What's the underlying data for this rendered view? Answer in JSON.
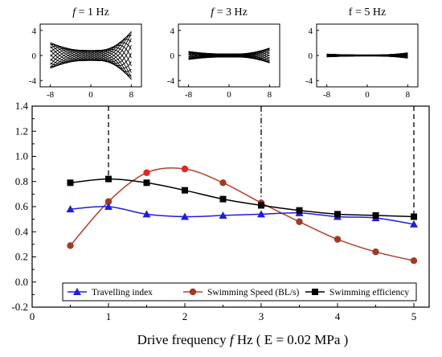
{
  "chart_data": [
    {
      "type": "line",
      "title_parts": [
        "f",
        " = 1 Hz"
      ],
      "title_italic_f": true,
      "xlim": [
        -10,
        10
      ],
      "ylim": [
        -5,
        5
      ],
      "xticks": [
        "-8",
        "0",
        "8"
      ],
      "xtick_values": [
        -8,
        0,
        8
      ],
      "yticks": [
        "4",
        "0",
        "-4"
      ],
      "ytick_values": [
        4,
        0,
        -4
      ],
      "amplitude": 0.9,
      "curves": 18,
      "x_range": [
        -8,
        8
      ]
    },
    {
      "type": "line",
      "title_parts": [
        "f",
        " = 3 Hz"
      ],
      "title_italic_f": true,
      "xlim": [
        -10,
        10
      ],
      "ylim": [
        -5,
        5
      ],
      "xticks": [
        "-8",
        "0",
        "8"
      ],
      "xtick_values": [
        -8,
        0,
        8
      ],
      "yticks": [
        "4",
        "0",
        "-4"
      ],
      "ytick_values": [
        4,
        0,
        -4
      ],
      "amplitude": 0.28,
      "curves": 18,
      "x_range": [
        -8,
        8
      ]
    },
    {
      "type": "line",
      "title_parts": [
        "f",
        " = 5 Hz"
      ],
      "title_italic_f": false,
      "xlim": [
        -10,
        10
      ],
      "ylim": [
        -5,
        5
      ],
      "xticks": [
        "-8",
        "0",
        "8"
      ],
      "xtick_values": [
        -8,
        0,
        8
      ],
      "yticks": [
        "4",
        "0",
        "-4"
      ],
      "ytick_values": [
        4,
        0,
        -4
      ],
      "amplitude": 0.1,
      "curves": 18,
      "x_range": [
        -8,
        8
      ]
    },
    {
      "type": "line",
      "xlabel_parts": [
        "Drive frequency ",
        "f",
        " Hz ( E = 0.02 MPa )"
      ],
      "ylabel": "",
      "xlim": [
        0,
        5.2
      ],
      "ylim": [
        -0.2,
        1.4
      ],
      "xticks": [
        "0",
        "1",
        "2",
        "3",
        "4",
        "5"
      ],
      "xtick_values": [
        0,
        1,
        2,
        3,
        4,
        5
      ],
      "yticks": [
        "-0.2",
        "0.0",
        "0.2",
        "0.4",
        "0.6",
        "0.8",
        "1.0",
        "1.2",
        "1.4"
      ],
      "ytick_values": [
        -0.2,
        0,
        0.2,
        0.4,
        0.6,
        0.8,
        1.0,
        1.2,
        1.4
      ],
      "x": [
        0.5,
        1.0,
        1.5,
        2.0,
        2.5,
        3.0,
        3.5,
        4.0,
        4.5,
        5.0
      ],
      "series": [
        {
          "name": "Travelling index",
          "color": "#1f1fdc",
          "marker": "triangle",
          "values": [
            0.58,
            0.6,
            0.54,
            0.52,
            0.53,
            0.54,
            0.55,
            0.52,
            0.51,
            0.46
          ]
        },
        {
          "name": "Swimming Speed (BL/s)",
          "color": "#b5412a",
          "marker_color": "#a23a22",
          "marker": "circle",
          "values": [
            0.29,
            0.64,
            0.87,
            0.9,
            0.79,
            0.63,
            0.48,
            0.34,
            0.24,
            0.17
          ]
        },
        {
          "name": "Swimming efficiency",
          "color": "#000000",
          "marker": "square",
          "values": [
            0.79,
            0.82,
            0.79,
            0.73,
            0.66,
            0.61,
            0.57,
            0.54,
            0.53,
            0.52
          ]
        }
      ],
      "vlines": [
        {
          "x": 1,
          "style": "dashed"
        },
        {
          "x": 3,
          "style": "dashdot"
        },
        {
          "x": 5,
          "style": "dashed"
        }
      ],
      "legend": "bottom-center"
    }
  ]
}
